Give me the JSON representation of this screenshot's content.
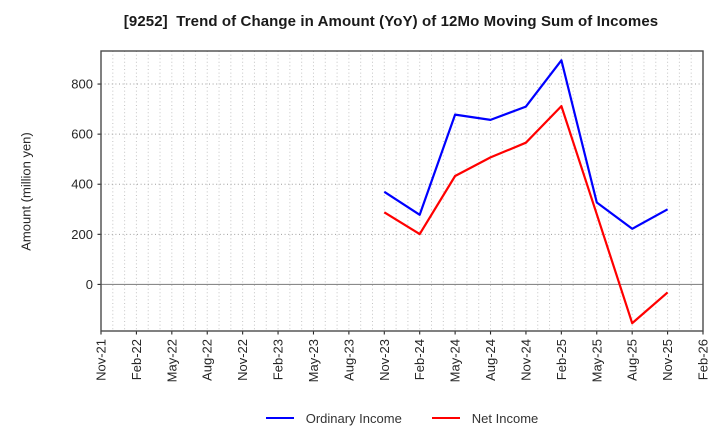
{
  "window": {
    "title": "[9252]  Trend of Change in Amount (YoY) of 12Mo Moving Sum of Incomes"
  },
  "chart_data": {
    "type": "line",
    "title": "[9252]  Trend of Change in Amount (YoY) of 12Mo Moving Sum of Incomes",
    "ylabel": "Amount (million yen)",
    "xlabel": "",
    "categories": [
      "Nov-21",
      "Feb-22",
      "May-22",
      "Aug-22",
      "Nov-22",
      "Feb-23",
      "May-23",
      "Aug-23",
      "Nov-23",
      "Feb-24",
      "May-24",
      "Aug-24",
      "Nov-24",
      "Feb-25",
      "May-25",
      "Aug-25",
      "Nov-25",
      "Feb-26"
    ],
    "minor_gridlines_per_interval": 3,
    "y_ticks": [
      0,
      200,
      400,
      600,
      800
    ],
    "ylim": [
      -186,
      932
    ],
    "grid": {
      "vertical": "monthly dotted",
      "horizontal": "dotted at y ticks",
      "zero_line": "solid"
    },
    "series": [
      {
        "name": "Ordinary Income",
        "color": "#0000ff",
        "values": [
          null,
          null,
          null,
          null,
          null,
          null,
          null,
          null,
          370,
          278,
          678,
          657,
          710,
          895,
          327,
          222,
          300,
          null
        ]
      },
      {
        "name": "Net Income",
        "color": "#ff0000",
        "values": [
          null,
          null,
          null,
          null,
          null,
          null,
          null,
          null,
          288,
          201,
          433,
          507,
          566,
          712,
          280,
          -155,
          -32,
          null
        ]
      }
    ],
    "legend": {
      "position": "bottom-center",
      "items": [
        {
          "label": "Ordinary Income",
          "color": "#0000ff"
        },
        {
          "label": "Net Income",
          "color": "#ff0000"
        }
      ]
    }
  }
}
